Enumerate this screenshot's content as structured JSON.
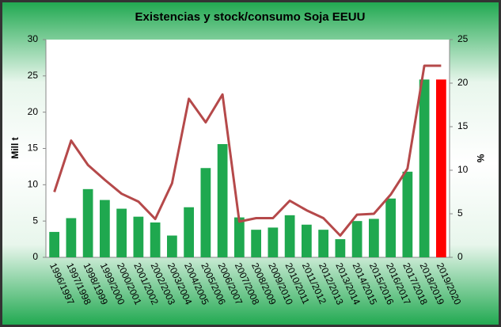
{
  "chart_data": {
    "type": "bar",
    "title": "Existencias y stock/consumo Soja EEUU",
    "ylabel": "Mill t",
    "y2label": "%",
    "categories": [
      "1996/1997",
      "1997/1998",
      "1998/1999",
      "1999/2000",
      "2000/2001",
      "2001/2002",
      "2002/2003",
      "2003/2004",
      "2004/2005",
      "2005/2006",
      "2006/2007",
      "2007/2008",
      "2008/2009",
      "2009/2010",
      "2010/2011",
      "2011/2012",
      "2012/2013",
      "2013/2014",
      "2014/2015",
      "2015/2016",
      "2016/2017",
      "2017/2018",
      "2018/2019",
      "2019/2020"
    ],
    "series": [
      {
        "type": "bar",
        "axis": "y",
        "color": "#1fa84f",
        "colors": [
          "#1fa84f",
          "#1fa84f",
          "#1fa84f",
          "#1fa84f",
          "#1fa84f",
          "#1fa84f",
          "#1fa84f",
          "#1fa84f",
          "#1fa84f",
          "#1fa84f",
          "#1fa84f",
          "#1fa84f",
          "#1fa84f",
          "#1fa84f",
          "#1fa84f",
          "#1fa84f",
          "#1fa84f",
          "#1fa84f",
          "#1fa84f",
          "#1fa84f",
          "#1fa84f",
          "#1fa84f",
          "#1fa84f",
          "#ff0000"
        ],
        "values": [
          3.5,
          5.4,
          9.4,
          7.9,
          6.7,
          5.6,
          4.8,
          3.0,
          6.9,
          12.3,
          15.6,
          5.5,
          3.8,
          4.1,
          5.8,
          4.5,
          3.8,
          2.5,
          5.0,
          5.3,
          8.1,
          11.8,
          24.5,
          24.5
        ]
      },
      {
        "type": "line",
        "axis": "y2",
        "color": "#b5494a",
        "values": [
          7.5,
          13.4,
          10.6,
          8.9,
          7.3,
          6.4,
          4.4,
          8.5,
          18.2,
          15.5,
          18.7,
          4.1,
          4.5,
          4.5,
          6.5,
          5.4,
          4.5,
          2.5,
          4.9,
          5.0,
          7.2,
          10.2,
          22.0,
          22.0
        ]
      }
    ],
    "ylim": [
      0,
      30
    ],
    "yticks": [
      0,
      5,
      10,
      15,
      20,
      25,
      30
    ],
    "y2lim": [
      0,
      25
    ],
    "y2ticks": [
      0,
      5,
      10,
      15,
      20,
      25
    ]
  }
}
